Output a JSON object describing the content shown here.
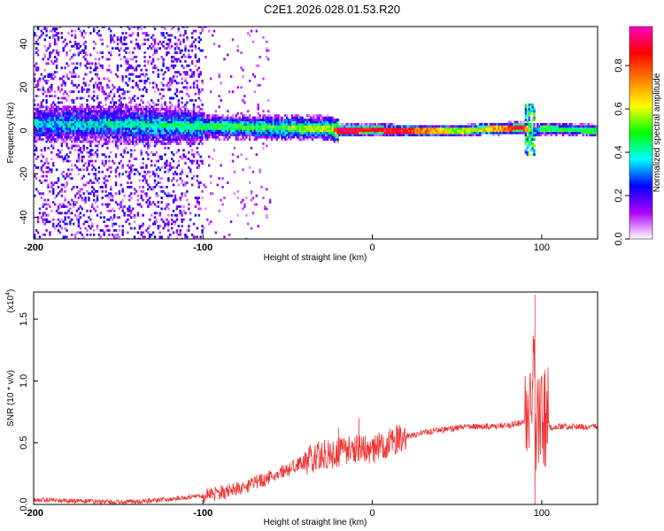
{
  "title": "C2E1.2026.028.01.53.R20",
  "chart_data": [
    {
      "type": "heatmap",
      "xlabel": "Height of straight line (km)",
      "ylabel": "Frequency (Hz)",
      "xlim": [
        -200,
        133
      ],
      "ylim": [
        -50,
        48
      ],
      "x_ticks": [
        {
          "value": -200,
          "label": "-200",
          "bold": true
        },
        {
          "value": -100,
          "label": "-100",
          "bold": true
        },
        {
          "value": 0,
          "label": "0",
          "bold": false
        },
        {
          "value": 100,
          "label": "100",
          "bold": false
        }
      ],
      "y_ticks": [
        {
          "value": -40,
          "label": "-40"
        },
        {
          "value": -20,
          "label": "-20"
        },
        {
          "value": 0,
          "label": "0"
        },
        {
          "value": 20,
          "label": "20"
        },
        {
          "value": 40,
          "label": "40"
        }
      ],
      "colorbar": {
        "label": "Normalized spectral amplitude",
        "range": [
          0,
          0.98
        ],
        "ticks": [
          {
            "value": 0.0,
            "label": "0.0"
          },
          {
            "value": 0.2,
            "label": "0.2"
          },
          {
            "value": 0.4,
            "label": "0.4"
          },
          {
            "value": 0.6,
            "label": "0.6"
          },
          {
            "value": 0.8,
            "label": "0.8"
          }
        ],
        "colors": [
          "#ffffff",
          "#ac00ff",
          "#0000ff",
          "#00ffff",
          "#00ff00",
          "#ffff00",
          "#ff7f00",
          "#ff0000",
          "#ff00c0"
        ]
      },
      "ridge": [
        {
          "x": -200,
          "f": 3,
          "amp": 0.35
        },
        {
          "x": -150,
          "f": 3,
          "amp": 0.4
        },
        {
          "x": -100,
          "f": 2,
          "amp": 0.45
        },
        {
          "x": -60,
          "f": 1.5,
          "amp": 0.5
        },
        {
          "x": -25,
          "f": 1,
          "amp": 0.6
        },
        {
          "x": -20,
          "f": 0,
          "amp": 0.95
        },
        {
          "x": 0,
          "f": 0.5,
          "amp": 0.85
        },
        {
          "x": 15,
          "f": 0,
          "amp": 0.9
        },
        {
          "x": 50,
          "f": 0,
          "amp": 0.55
        },
        {
          "x": 75,
          "f": 1,
          "amp": 0.7
        },
        {
          "x": 88,
          "f": 1.5,
          "amp": 0.95
        },
        {
          "x": 95,
          "f": 0,
          "amp": 0.3
        },
        {
          "x": 100,
          "f": 1,
          "amp": 0.5
        },
        {
          "x": 133,
          "f": 0,
          "amp": 0.45
        }
      ]
    },
    {
      "type": "line",
      "xlabel": "Height of straight line (km)",
      "ylabel": "SNR (10 * v/v)",
      "y_multiplier": "(x10",
      "y_multiplier_exp": "4",
      "y_multiplier_close": ")",
      "xlim": [
        -200,
        133
      ],
      "ylim": [
        0,
        1.72
      ],
      "color": "#ee3333",
      "x_ticks": [
        {
          "value": -200,
          "label": "-200",
          "bold": true
        },
        {
          "value": -100,
          "label": "-100",
          "bold": true
        },
        {
          "value": 0,
          "label": "0",
          "bold": false
        },
        {
          "value": 100,
          "label": "100",
          "bold": false
        }
      ],
      "y_ticks": [
        {
          "value": 0,
          "label": "0.0"
        },
        {
          "value": 0.5,
          "label": "0.5"
        },
        {
          "value": 1.0,
          "label": "1.0"
        },
        {
          "value": 1.5,
          "label": "1.5"
        }
      ],
      "x": [
        -200,
        -180,
        -160,
        -140,
        -120,
        -100,
        -90,
        -80,
        -70,
        -60,
        -50,
        -40,
        -30,
        -20,
        -10,
        0,
        10,
        20,
        30,
        40,
        50,
        60,
        70,
        80,
        88,
        92,
        95,
        97,
        100,
        105,
        110,
        120,
        133
      ],
      "y": [
        0.04,
        0.03,
        0.02,
        0.02,
        0.04,
        0.07,
        0.1,
        0.12,
        0.17,
        0.22,
        0.28,
        0.35,
        0.4,
        0.42,
        0.45,
        0.44,
        0.5,
        0.55,
        0.58,
        0.6,
        0.62,
        0.63,
        0.63,
        0.64,
        0.66,
        0.7,
        1.1,
        0.55,
        0.8,
        0.62,
        0.63,
        0.63,
        0.63
      ],
      "spikes": [
        {
          "x": -80,
          "y": 0.18
        },
        {
          "x": -50,
          "y": 0.28
        },
        {
          "x": -20,
          "y": 0.62
        },
        {
          "x": -8,
          "y": 0.7
        },
        {
          "x": 96,
          "y": 1.7
        },
        {
          "x": 96,
          "y": 0.0
        }
      ]
    }
  ]
}
